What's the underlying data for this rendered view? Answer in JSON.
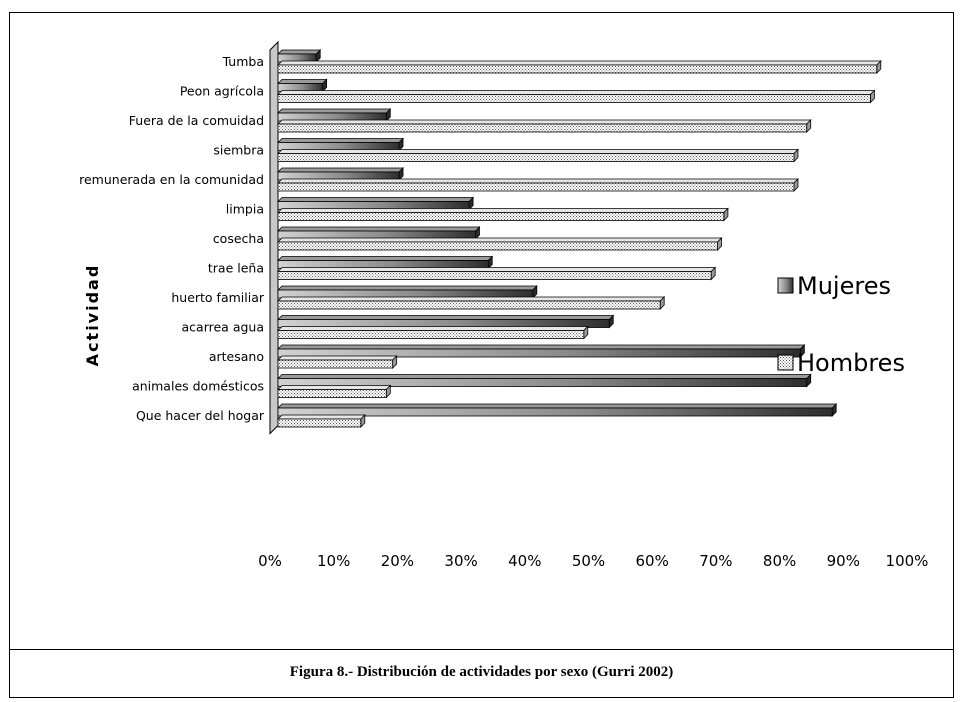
{
  "caption": "Figura 8.- Distribución de actividades por sexo (Gurri 2002)",
  "chart_data": {
    "type": "bar",
    "orientation": "horizontal",
    "style": "3d",
    "ylabel": "Actividad",
    "xlabel": "",
    "xlim": [
      0,
      100
    ],
    "x_ticks": [
      "0%",
      "10%",
      "20%",
      "30%",
      "40%",
      "50%",
      "60%",
      "70%",
      "80%",
      "90%",
      "100%"
    ],
    "legend_position": "right",
    "categories": [
      "Tumba",
      "Peon agrícola",
      "Fuera de la comuidad",
      "siembra",
      "remunerada en la comunidad",
      "limpia",
      "cosecha",
      "trae leña",
      "huerto familiar",
      "acarrea agua",
      "artesano",
      "animales domésticos",
      "Que hacer del hogar"
    ],
    "series": [
      {
        "name": "Mujeres",
        "pattern": "gradient",
        "color": "#555555",
        "values": [
          6,
          7,
          17,
          19,
          19,
          30,
          31,
          33,
          40,
          52,
          82,
          83,
          87
        ]
      },
      {
        "name": "Hombres",
        "pattern": "dots",
        "color": "#cfcfcf",
        "values": [
          94,
          93,
          83,
          81,
          81,
          70,
          69,
          68,
          60,
          48,
          18,
          17,
          13
        ]
      }
    ]
  }
}
